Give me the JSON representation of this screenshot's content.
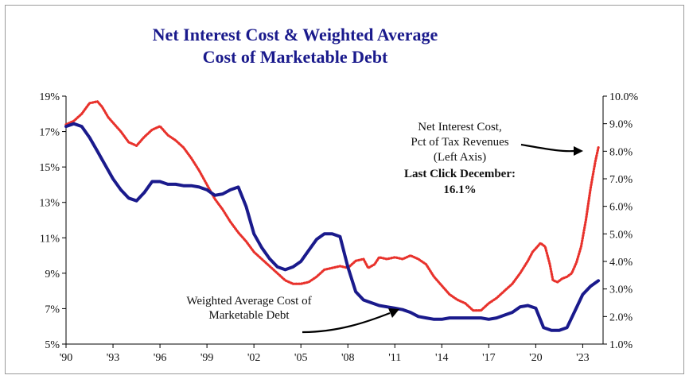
{
  "chart_data": {
    "type": "line",
    "title_lines": [
      "Net Interest Cost & Weighted Average",
      "Cost of Marketable Debt"
    ],
    "x_ticks": [
      "'90",
      "'93",
      "'96",
      "'99",
      "'02",
      "'05",
      "'08",
      "'11",
      "'14",
      "'17",
      "'20",
      "'23"
    ],
    "xlim": [
      1990,
      2024.3
    ],
    "left_axis": {
      "ticks": [
        "19%",
        "17%",
        "15%",
        "13%",
        "11%",
        "9%",
        "7%",
        "5%"
      ],
      "ylim": [
        5,
        19
      ]
    },
    "right_axis": {
      "ticks": [
        "10.0%",
        "9.0%",
        "8.0%",
        "7.0%",
        "6.0%",
        "5.0%",
        "4.0%",
        "3.0%",
        "2.0%",
        "1.0%"
      ],
      "ylim": [
        1,
        10
      ]
    },
    "series": [
      {
        "name": "Net Interest Cost, Pct of Tax Revenues (Left Axis)",
        "axis": "left",
        "color": "#e8322c",
        "style": "dotted",
        "x": [
          1990.0,
          1990.5,
          1991.0,
          1991.5,
          1992.0,
          1992.3,
          1992.7,
          1993.0,
          1993.5,
          1994.0,
          1994.5,
          1995.0,
          1995.5,
          1996.0,
          1996.5,
          1997.0,
          1997.5,
          1998.0,
          1998.5,
          1999.0,
          1999.5,
          2000.0,
          2000.5,
          2001.0,
          2001.5,
          2002.0,
          2002.5,
          2003.0,
          2003.5,
          2004.0,
          2004.5,
          2005.0,
          2005.5,
          2006.0,
          2006.5,
          2007.0,
          2007.5,
          2008.0,
          2008.5,
          2009.0,
          2009.3,
          2009.7,
          2010.0,
          2010.5,
          2011.0,
          2011.5,
          2012.0,
          2012.5,
          2013.0,
          2013.5,
          2014.0,
          2014.5,
          2015.0,
          2015.5,
          2016.0,
          2016.5,
          2017.0,
          2017.5,
          2018.0,
          2018.5,
          2019.0,
          2019.5,
          2019.8,
          2020.0,
          2020.3,
          2020.6,
          2020.9,
          2021.1,
          2021.4,
          2021.7,
          2022.0,
          2022.3,
          2022.6,
          2022.9,
          2023.2,
          2023.5,
          2023.8,
          2024.0
        ],
        "values": [
          17.4,
          17.6,
          18.0,
          18.6,
          18.7,
          18.4,
          17.8,
          17.5,
          17.0,
          16.4,
          16.2,
          16.7,
          17.1,
          17.3,
          16.8,
          16.5,
          16.1,
          15.5,
          14.8,
          14.0,
          13.2,
          12.6,
          11.9,
          11.3,
          10.8,
          10.2,
          9.8,
          9.4,
          9.0,
          8.6,
          8.4,
          8.4,
          8.5,
          8.8,
          9.2,
          9.3,
          9.4,
          9.3,
          9.7,
          9.8,
          9.3,
          9.5,
          9.9,
          9.8,
          9.9,
          9.8,
          10.0,
          9.8,
          9.5,
          8.8,
          8.3,
          7.8,
          7.5,
          7.3,
          6.9,
          6.9,
          7.3,
          7.6,
          8.0,
          8.4,
          9.0,
          9.7,
          10.2,
          10.4,
          10.7,
          10.5,
          9.5,
          8.6,
          8.5,
          8.7,
          8.8,
          9.0,
          9.6,
          10.5,
          12.0,
          13.8,
          15.3,
          16.1
        ]
      },
      {
        "name": "Weighted Average Cost of Marketable Debt",
        "axis": "right",
        "color": "#1a1a8c",
        "style": "solid",
        "x": [
          1990.0,
          1990.5,
          1991.0,
          1991.5,
          1992.0,
          1992.5,
          1993.0,
          1993.5,
          1994.0,
          1994.5,
          1995.0,
          1995.5,
          1996.0,
          1996.5,
          1997.0,
          1997.5,
          1998.0,
          1998.5,
          1999.0,
          1999.5,
          2000.0,
          2000.5,
          2001.0,
          2001.5,
          2002.0,
          2002.5,
          2003.0,
          2003.5,
          2004.0,
          2004.5,
          2005.0,
          2005.5,
          2006.0,
          2006.5,
          2007.0,
          2007.5,
          2008.0,
          2008.5,
          2009.0,
          2009.5,
          2010.0,
          2010.5,
          2011.0,
          2011.5,
          2012.0,
          2012.5,
          2013.0,
          2013.5,
          2014.0,
          2014.5,
          2015.0,
          2015.5,
          2016.0,
          2016.5,
          2017.0,
          2017.5,
          2018.0,
          2018.5,
          2019.0,
          2019.5,
          2020.0,
          2020.5,
          2021.0,
          2021.5,
          2022.0,
          2022.5,
          2023.0,
          2023.5,
          2024.0
        ],
        "values": [
          8.9,
          9.0,
          8.9,
          8.5,
          8.0,
          7.5,
          7.0,
          6.6,
          6.3,
          6.2,
          6.5,
          6.9,
          6.9,
          6.8,
          6.8,
          6.75,
          6.75,
          6.7,
          6.6,
          6.4,
          6.45,
          6.6,
          6.7,
          6.0,
          5.0,
          4.5,
          4.1,
          3.8,
          3.7,
          3.8,
          4.0,
          4.4,
          4.8,
          5.0,
          5.0,
          4.9,
          3.8,
          2.9,
          2.6,
          2.5,
          2.4,
          2.35,
          2.3,
          2.25,
          2.15,
          2.0,
          1.95,
          1.9,
          1.9,
          1.95,
          1.95,
          1.95,
          1.95,
          1.95,
          1.9,
          1.95,
          2.05,
          2.15,
          2.35,
          2.4,
          2.3,
          1.6,
          1.5,
          1.5,
          1.6,
          2.2,
          2.8,
          3.1,
          3.3
        ]
      }
    ],
    "annotations": {
      "nic_label": [
        "Net Interest Cost,",
        "Pct of Tax Revenues",
        "(Left Axis)"
      ],
      "last_click": [
        "Last Click December:",
        "16.1%"
      ],
      "wac_label": [
        "Weighted Average Cost of",
        "Marketable Debt"
      ]
    },
    "grid": false,
    "colors": {
      "title": "#1a1a8c",
      "axis": "#000000",
      "border": "#9a9a9a"
    }
  }
}
